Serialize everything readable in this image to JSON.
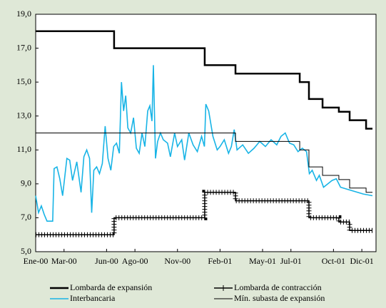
{
  "chart_data": {
    "type": "line",
    "xlim": [
      0,
      24
    ],
    "xticks": [
      {
        "value": 0,
        "label": "Ene-00"
      },
      {
        "value": 2,
        "label": "Mar-00"
      },
      {
        "value": 5,
        "label": "Jun-00"
      },
      {
        "value": 7,
        "label": "Ago-00"
      },
      {
        "value": 10,
        "label": "Nov-00"
      },
      {
        "value": 13,
        "label": "Feb-01"
      },
      {
        "value": 16,
        "label": "May-01"
      },
      {
        "value": 18,
        "label": "Jul-01"
      },
      {
        "value": 21,
        "label": "Oct-01"
      },
      {
        "value": 23,
        "label": "Dic-01"
      }
    ],
    "ylim": [
      5,
      19
    ],
    "yticks": [
      {
        "value": 5,
        "label": "5,0"
      },
      {
        "value": 7,
        "label": "7,0"
      },
      {
        "value": 9,
        "label": "9,0"
      },
      {
        "value": 11,
        "label": "11,0"
      },
      {
        "value": 13,
        "label": "13,0"
      },
      {
        "value": 15,
        "label": "15,0"
      },
      {
        "value": 17,
        "label": "17,0"
      },
      {
        "value": 19,
        "label": "19,0"
      }
    ],
    "series": [
      {
        "name": "Lombarda de expansión",
        "color": "#000000",
        "style": "thick",
        "x": [
          0,
          5.53,
          5.53,
          11.92,
          11.92,
          14.09,
          14.09,
          18.62,
          18.62,
          19.27,
          19.27,
          20.23,
          20.23,
          21.38,
          21.38,
          22.14,
          22.14,
          23.3,
          23.3,
          23.75
        ],
        "values": [
          18,
          18,
          17,
          17,
          16,
          16,
          15.5,
          15.5,
          15,
          15,
          14,
          14,
          13.5,
          13.5,
          13.25,
          13.25,
          12.75,
          12.75,
          12.25,
          12.25
        ]
      },
      {
        "name": "Lombarda de contracción",
        "color": "#000000",
        "style": "cross",
        "x": [
          0,
          5.53,
          5.53,
          11.92,
          11.92,
          14.09,
          14.09,
          19.27,
          19.27,
          21.38,
          21.38,
          22.14,
          22.14,
          23.75
        ],
        "values": [
          6,
          6,
          7,
          7,
          8.5,
          8.5,
          8,
          8,
          7,
          7,
          6.75,
          6.75,
          6.25,
          6.25
        ]
      },
      {
        "name": "Interbancaria",
        "color": "#18b4e6",
        "style": "normal",
        "x": [
          0,
          0.2,
          0.4,
          0.6,
          0.8,
          1.2,
          1.3,
          1.5,
          1.7,
          1.9,
          2.2,
          2.4,
          2.6,
          2.9,
          3.2,
          3.4,
          3.6,
          3.8,
          3.95,
          4.1,
          4.3,
          4.5,
          4.7,
          4.9,
          5.1,
          5.3,
          5.5,
          5.7,
          5.9,
          6.05,
          6.2,
          6.35,
          6.5,
          6.7,
          6.9,
          7.1,
          7.3,
          7.5,
          7.7,
          7.9,
          8.05,
          8.2,
          8.3,
          8.45,
          8.6,
          8.8,
          9.0,
          9.3,
          9.5,
          9.8,
          10.0,
          10.3,
          10.5,
          10.8,
          11.1,
          11.4,
          11.7,
          11.9,
          12.0,
          12.2,
          12.5,
          12.8,
          13.0,
          13.3,
          13.6,
          13.8,
          14.0,
          14.2,
          14.6,
          15.0,
          15.4,
          15.8,
          16.2,
          16.6,
          17.0,
          17.3,
          17.6,
          17.9,
          18.2,
          18.5,
          18.8,
          19.1,
          19.3,
          19.5,
          19.8,
          20.0,
          20.3,
          20.6,
          20.9,
          21.2,
          21.5,
          21.9,
          22.3,
          22.7,
          23.1,
          23.75
        ],
        "values": [
          8.3,
          7.3,
          7.7,
          7.2,
          6.8,
          6.8,
          9.9,
          10.0,
          9.3,
          8.3,
          10.5,
          10.4,
          9.2,
          10.3,
          8.5,
          10.6,
          11.0,
          10.5,
          7.3,
          9.8,
          10.0,
          9.6,
          10.2,
          12.4,
          10.5,
          9.8,
          11.2,
          11.4,
          10.8,
          15.0,
          13.3,
          14.2,
          12.3,
          12.0,
          12.9,
          11.1,
          10.8,
          12.0,
          11.2,
          13.3,
          13.6,
          12.7,
          16.0,
          10.5,
          11.5,
          12.0,
          11.6,
          11.4,
          10.6,
          12.0,
          11.2,
          11.6,
          10.4,
          12.0,
          11.3,
          10.9,
          11.8,
          11.2,
          13.7,
          13.3,
          11.8,
          11.0,
          11.2,
          11.6,
          10.8,
          11.2,
          12.2,
          11.0,
          11.3,
          10.8,
          11.1,
          11.5,
          11.2,
          11.6,
          11.3,
          11.8,
          12.0,
          11.4,
          11.3,
          10.9,
          11.1,
          10.9,
          9.6,
          9.8,
          9.2,
          9.5,
          8.8,
          9.0,
          9.2,
          9.3,
          8.8,
          8.7,
          8.6,
          8.5,
          8.4,
          8.3
        ]
      },
      {
        "name": "Mín. subasta de expansión",
        "color": "#000000",
        "style": "thin",
        "x": [
          0,
          14.09,
          14.09,
          18.62,
          18.62,
          19.27,
          19.27,
          20.23,
          20.23,
          21.38,
          21.38,
          22.14,
          22.14,
          23.3,
          23.3,
          23.75
        ],
        "values": [
          12,
          12,
          11.5,
          11.5,
          11,
          11,
          10,
          10,
          9.5,
          9.5,
          9.25,
          9.25,
          8.75,
          8.75,
          8.5,
          8.5
        ]
      }
    ]
  }
}
